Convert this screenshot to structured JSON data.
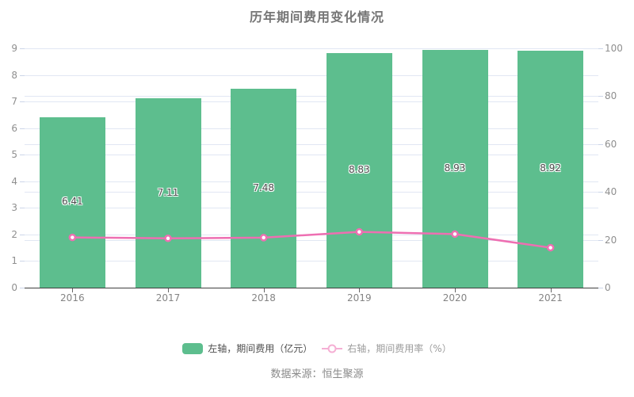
{
  "title": "历年期间费用变化情况",
  "source": "数据来源：恒生聚源",
  "legend": {
    "bar_label": "左轴，期间费用（亿元）",
    "line_label": "右轴，期间费用率（%）"
  },
  "colors": {
    "bar": "#5dbe8e",
    "line": "#ee6fb2",
    "grid": "#e1e7f3",
    "axis": "#3f3f3f"
  },
  "chart_data": {
    "type": "bar",
    "title": "历年期间费用变化情况",
    "categories": [
      "2016",
      "2017",
      "2018",
      "2019",
      "2020",
      "2021"
    ],
    "series": [
      {
        "name": "左轴，期间费用（亿元）",
        "type": "bar",
        "axis": "left",
        "color": "#5dbe8e",
        "values": [
          6.41,
          7.11,
          7.48,
          8.83,
          8.93,
          8.92
        ]
      },
      {
        "name": "右轴，期间费用率（%）",
        "type": "line",
        "axis": "right",
        "color": "#ee6fb2",
        "values": [
          21.0,
          20.6,
          20.9,
          23.3,
          22.4,
          16.7
        ]
      }
    ],
    "left_axis": {
      "label": "期间费用（亿元）",
      "min": 0,
      "max": 9,
      "ticks": [
        0,
        1,
        2,
        3,
        4,
        5,
        6,
        7,
        8,
        9
      ]
    },
    "right_axis": {
      "label": "期间费用率（%）",
      "min": 0,
      "max": 100,
      "ticks": [
        0,
        20,
        40,
        60,
        80,
        100
      ]
    },
    "grid": true,
    "legend_position": "bottom",
    "value_labels": "inside-middle"
  }
}
